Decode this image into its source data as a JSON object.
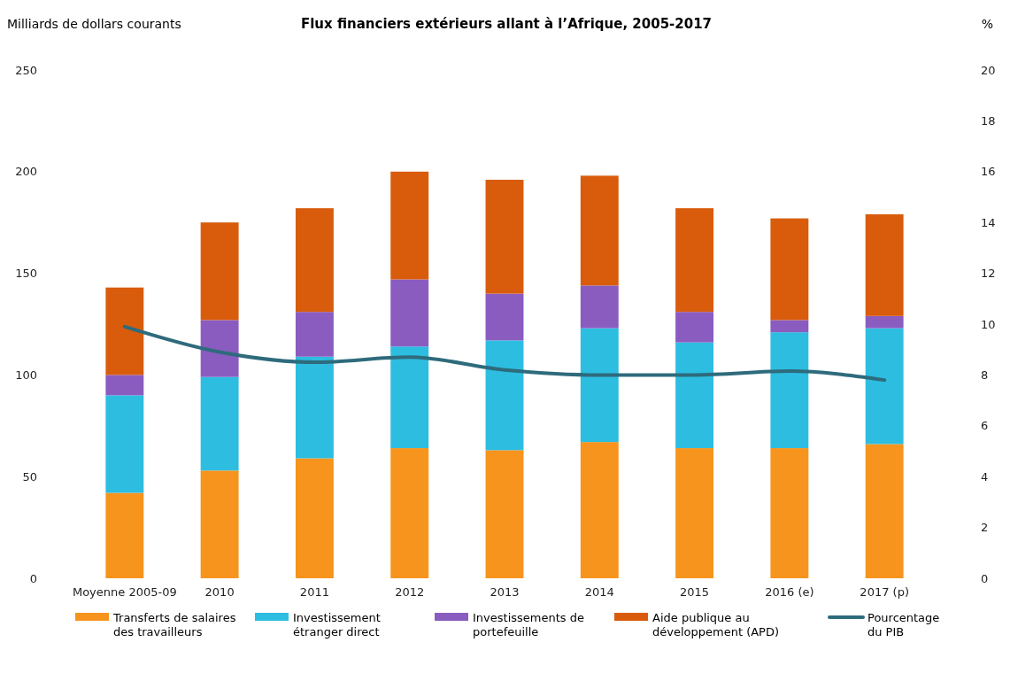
{
  "chart_data": {
    "type": "bar",
    "title": "Flux financiers extérieurs allant à l’Afrique, 2005-2017",
    "ylabel": "Milliards de dollars courants",
    "y2label": "%",
    "categories": [
      "Moyenne 2005-09",
      "2010",
      "2011",
      "2012",
      "2013",
      "2014",
      "2015",
      "2016 (e)",
      "2017 (p)"
    ],
    "stacked": true,
    "legend": "bottom",
    "grid": false,
    "ylim": [
      0,
      250
    ],
    "yticks": [
      0,
      50,
      100,
      150,
      200,
      250
    ],
    "y2lim": [
      0,
      20
    ],
    "y2ticks": [
      0,
      2,
      4,
      6,
      8,
      10,
      12,
      14,
      16,
      18,
      20
    ],
    "series": [
      {
        "name": "Transferts de salaires des travailleurs",
        "color": "#f7941d",
        "values": [
          42,
          53,
          59,
          64,
          63,
          67,
          64,
          64,
          66
        ]
      },
      {
        "name": "Investissement étranger direct",
        "color": "#2dbde0",
        "values": [
          48,
          46,
          50,
          50,
          54,
          56,
          52,
          57,
          57
        ]
      },
      {
        "name": "Investissements de portefeuille",
        "color": "#8a5cc0",
        "values": [
          10,
          28,
          22,
          33,
          23,
          21,
          15,
          6,
          6
        ]
      },
      {
        "name": "Aide publique au développement (APD)",
        "color": "#d85c0c",
        "values": [
          43,
          48,
          51,
          53,
          56,
          54,
          51,
          50,
          50
        ]
      },
      {
        "name": "Pourcentage du PIB",
        "type": "line",
        "axis": "y2",
        "color": "#2e6b7c",
        "values": [
          9.9,
          8.9,
          8.5,
          8.7,
          8.2,
          8.0,
          8.0,
          8.15,
          7.8
        ]
      }
    ]
  }
}
